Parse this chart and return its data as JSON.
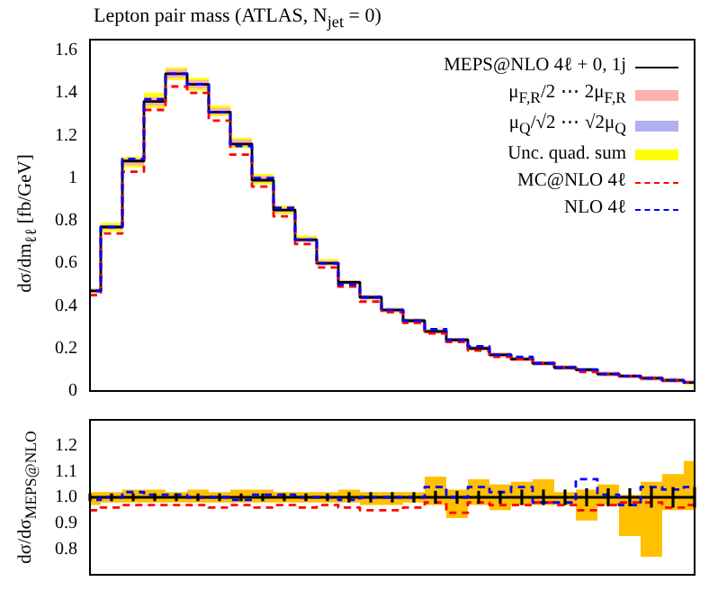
{
  "chart_data": [
    {
      "type": "step",
      "title": "Lepton pair mass (ATLAS, N$_{jet}$ = 0)",
      "ylabel": "dσ/dm$_{ℓℓ}$ [fb/GeV]",
      "categories": [
        null,
        null,
        null,
        null,
        null,
        null,
        null,
        null,
        null,
        null,
        null,
        null,
        null,
        null,
        null,
        null,
        null,
        null,
        null,
        null,
        null,
        null,
        null,
        null,
        null,
        null,
        null,
        null,
        null
      ],
      "ylim": [
        0,
        1.65
      ],
      "yticks": [
        0,
        0.2,
        0.4,
        0.6,
        0.8,
        1,
        1.2,
        1.4,
        1.6
      ],
      "tick_labels": "y",
      "legend": "top right",
      "grid": false,
      "marker": "none",
      "series": [
        {
          "name": "MEPS@NLO 4ℓ + 0, 1j",
          "color": "#000000",
          "line_style": "solid",
          "values": [
            0.47,
            0.77,
            1.08,
            1.36,
            1.49,
            1.44,
            1.31,
            1.16,
            0.99,
            0.85,
            0.71,
            0.6,
            0.51,
            0.44,
            0.38,
            0.33,
            0.28,
            0.24,
            0.2,
            0.17,
            0.15,
            0.13,
            0.11,
            0.1,
            0.08,
            0.07,
            0.06,
            0.05,
            0.04
          ]
        },
        {
          "name": "μ$_{F,R}$/2 ⋯ 2μ$_{F,R}$",
          "color": "#ffb0b0",
          "values": [
            null,
            null,
            null,
            null,
            null,
            null,
            null,
            null,
            null,
            null,
            null,
            null,
            null,
            null,
            null,
            null,
            null,
            null,
            null,
            null,
            null,
            null,
            null,
            null,
            null,
            null,
            null,
            null,
            null
          ],
          "lower": [
            0.46,
            0.76,
            1.06,
            1.34,
            1.47,
            1.42,
            1.3,
            1.15,
            0.98,
            0.84,
            0.7,
            0.59,
            0.5,
            0.43,
            0.37,
            0.32,
            0.27,
            0.23,
            0.19,
            0.16,
            0.14,
            0.12,
            0.1,
            0.09,
            0.07,
            0.06,
            0.05,
            0.04,
            0.04
          ],
          "upper": [
            0.48,
            0.78,
            1.09,
            1.38,
            1.51,
            1.46,
            1.33,
            1.18,
            1.01,
            0.86,
            0.72,
            0.61,
            0.52,
            0.45,
            0.39,
            0.34,
            0.29,
            0.25,
            0.21,
            0.18,
            0.16,
            0.14,
            0.12,
            0.1,
            0.09,
            0.08,
            0.07,
            0.06,
            0.05
          ]
        },
        {
          "name": "μ$_{Q}$/√2 ⋯ √2μ$_{Q}$",
          "color": "#b0b0f0",
          "values": [
            null,
            null,
            null,
            null,
            null,
            null,
            null,
            null,
            null,
            null,
            null,
            null,
            null,
            null,
            null,
            null,
            null,
            null,
            null,
            null,
            null,
            null,
            null,
            null,
            null,
            null,
            null,
            null,
            null
          ],
          "lower": [
            0.46,
            0.76,
            1.07,
            1.35,
            1.48,
            1.43,
            1.3,
            1.15,
            0.98,
            0.84,
            0.7,
            0.59,
            0.5,
            0.43,
            0.37,
            0.32,
            0.27,
            0.23,
            0.19,
            0.16,
            0.14,
            0.12,
            0.1,
            0.09,
            0.07,
            0.06,
            0.05,
            0.04,
            0.04
          ],
          "upper": [
            0.48,
            0.78,
            1.09,
            1.37,
            1.5,
            1.45,
            1.32,
            1.17,
            1.0,
            0.86,
            0.72,
            0.61,
            0.52,
            0.45,
            0.39,
            0.34,
            0.29,
            0.25,
            0.21,
            0.18,
            0.16,
            0.14,
            0.12,
            0.11,
            0.09,
            0.08,
            0.07,
            0.06,
            0.05
          ]
        },
        {
          "name": "Unc. quad. sum",
          "color": "#ffff00",
          "values": [
            null,
            null,
            null,
            null,
            null,
            null,
            null,
            null,
            null,
            null,
            null,
            null,
            null,
            null,
            null,
            null,
            null,
            null,
            null,
            null,
            null,
            null,
            null,
            null,
            null,
            null,
            null,
            null,
            null
          ],
          "lower": [
            0.46,
            0.75,
            1.05,
            1.33,
            1.46,
            1.41,
            1.29,
            1.14,
            0.97,
            0.83,
            0.7,
            0.59,
            0.5,
            0.43,
            0.37,
            0.32,
            0.27,
            0.23,
            0.19,
            0.16,
            0.14,
            0.12,
            0.1,
            0.09,
            0.07,
            0.06,
            0.05,
            0.04,
            0.03
          ],
          "upper": [
            0.48,
            0.79,
            1.1,
            1.4,
            1.52,
            1.47,
            1.34,
            1.19,
            1.02,
            0.87,
            0.73,
            0.62,
            0.52,
            0.45,
            0.39,
            0.34,
            0.29,
            0.25,
            0.21,
            0.18,
            0.16,
            0.14,
            0.12,
            0.11,
            0.09,
            0.08,
            0.07,
            0.06,
            0.05
          ]
        },
        {
          "name": "MC@NLO 4ℓ",
          "color": "#ff0000",
          "line_style": "dashed",
          "values": [
            0.45,
            0.74,
            1.03,
            1.32,
            1.43,
            1.4,
            1.27,
            1.11,
            0.96,
            0.82,
            0.69,
            0.58,
            0.49,
            0.42,
            0.37,
            0.32,
            0.27,
            0.23,
            0.19,
            0.16,
            0.15,
            0.13,
            0.11,
            0.09,
            0.08,
            0.07,
            0.06,
            0.05,
            0.04
          ]
        },
        {
          "name": "NLO 4ℓ",
          "color": "#0000ff",
          "line_style": "dashed",
          "values": [
            0.47,
            0.77,
            1.09,
            1.37,
            1.49,
            1.44,
            1.31,
            1.15,
            1.0,
            0.86,
            0.71,
            0.6,
            0.5,
            0.44,
            0.38,
            0.33,
            0.29,
            0.24,
            0.21,
            0.17,
            0.16,
            0.13,
            0.11,
            0.1,
            0.08,
            0.07,
            0.06,
            0.05,
            0.04
          ]
        }
      ]
    },
    {
      "type": "step",
      "ylabel": "dσ/dσ$_{MEPS@NLO}$",
      "categories": [
        null,
        null,
        null,
        null,
        null,
        null,
        null,
        null,
        null,
        null,
        null,
        null,
        null,
        null,
        null,
        null,
        null,
        null,
        null,
        null,
        null,
        null,
        null,
        null,
        null,
        null,
        null,
        null,
        null
      ],
      "ylim": [
        0.7,
        1.3
      ],
      "yticks": [
        {
          "value": 0.8,
          "label": "0.8"
        },
        {
          "value": 0.9,
          "label": "0.9"
        },
        {
          "value": 1,
          "label": "1.0"
        },
        {
          "value": 1.1,
          "label": "1.1"
        },
        {
          "value": 1.2,
          "label": "1.2"
        }
      ],
      "tick_labels": "y",
      "grid": false,
      "marker": "none",
      "series": [
        {
          "color": "#000000",
          "line_style": "solid",
          "values": [
            1,
            1,
            1,
            1,
            1,
            1,
            1,
            1,
            1,
            1,
            1,
            1,
            1,
            1,
            1,
            1,
            1,
            1,
            1,
            1,
            1,
            1,
            1,
            1,
            1,
            1,
            1,
            1,
            1
          ],
          "errors": [
            0.015,
            0.015,
            0.015,
            0.015,
            0.015,
            0.015,
            0.015,
            0.015,
            0.015,
            0.015,
            0.015,
            0.015,
            0.02,
            0.02,
            0.02,
            0.02,
            0.025,
            0.025,
            0.025,
            0.025,
            0.03,
            0.03,
            0.03,
            0.035,
            0.035,
            0.035,
            0.04,
            0.04,
            0.04
          ]
        },
        {
          "color": "#ffc000",
          "values": [
            null,
            null,
            null,
            null,
            null,
            null,
            null,
            null,
            null,
            null,
            null,
            null,
            null,
            null,
            null,
            null,
            null,
            null,
            null,
            null,
            null,
            null,
            null,
            null,
            null,
            null,
            null,
            null,
            null
          ],
          "lower": [
            0.97,
            0.98,
            0.98,
            0.98,
            0.98,
            0.98,
            0.98,
            0.98,
            0.98,
            0.98,
            0.98,
            0.98,
            0.98,
            0.97,
            0.97,
            0.98,
            0.97,
            0.92,
            0.97,
            0.95,
            0.97,
            0.97,
            0.97,
            0.91,
            0.97,
            0.85,
            0.77,
            0.95,
            0.95
          ],
          "upper": [
            1.02,
            1.02,
            1.03,
            1.03,
            1.02,
            1.03,
            1.02,
            1.03,
            1.03,
            1.02,
            1.02,
            1.02,
            1.03,
            1.02,
            1.02,
            1.02,
            1.08,
            1.03,
            1.07,
            1.05,
            1.06,
            1.07,
            1.02,
            1.03,
            1.05,
            1.01,
            1.06,
            1.09,
            1.14
          ]
        },
        {
          "color": "#ff0000",
          "line_style": "dashed",
          "values": [
            0.95,
            0.96,
            0.97,
            0.97,
            0.97,
            0.97,
            0.96,
            0.97,
            0.96,
            0.97,
            0.96,
            0.97,
            0.96,
            0.95,
            0.95,
            0.96,
            0.98,
            0.94,
            0.98,
            0.97,
            0.97,
            0.98,
            0.97,
            0.95,
            0.97,
            0.98,
            0.98,
            0.96,
            0.97
          ]
        },
        {
          "color": "#0000ff",
          "line_style": "dashed",
          "values": [
            0.99,
            1.0,
            1.02,
            1.01,
            1.01,
            1.0,
            1.0,
            0.99,
            1.01,
            1.01,
            1.0,
            1.0,
            0.99,
            1.0,
            1.0,
            1.0,
            1.04,
            1.0,
            1.04,
            1.02,
            1.04,
            0.98,
            0.98,
            1.07,
            1.01,
            0.97,
            1.04,
            1.03,
            1.04
          ]
        }
      ]
    }
  ]
}
